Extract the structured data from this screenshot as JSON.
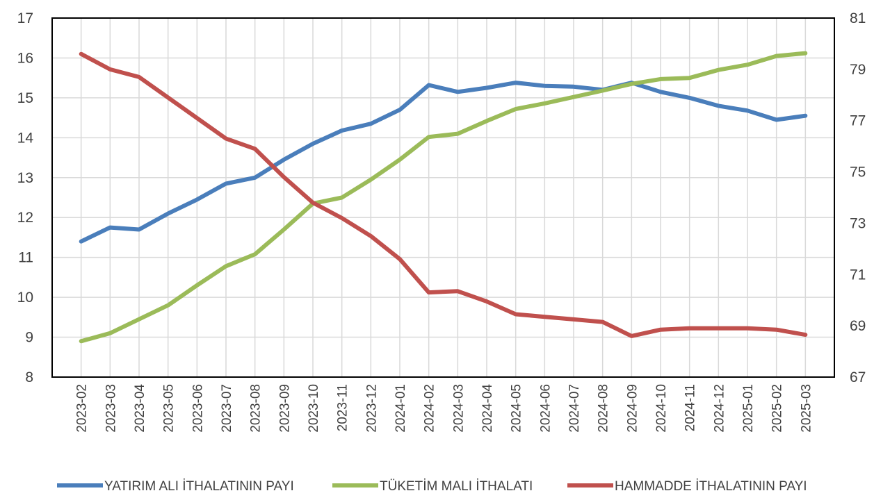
{
  "chart_data": {
    "type": "line",
    "x": [
      "2023-02",
      "2023-03",
      "2023-04",
      "2023-05",
      "2023-06",
      "2023-07",
      "2023-08",
      "2023-09",
      "2023-10",
      "2023-11",
      "2023-12",
      "2024-01",
      "2024-02",
      "2024-03",
      "2024-04",
      "2024-05",
      "2024-06",
      "2024-07",
      "2024-08",
      "2024-09",
      "2024-10",
      "2024-11",
      "2024-12",
      "2025-01",
      "2025-02",
      "2025-03"
    ],
    "y_left": {
      "min": 8,
      "max": 17,
      "ticks": [
        8,
        9,
        10,
        11,
        12,
        13,
        14,
        15,
        16,
        17
      ]
    },
    "y_right": {
      "min": 67,
      "max": 81,
      "ticks": [
        67,
        69,
        71,
        73,
        75,
        77,
        79,
        81
      ]
    },
    "grid": true,
    "legend_position": "bottom",
    "series": [
      {
        "name": "YATIRIM ALI İTHALATININ PAYI",
        "axis": "left",
        "color": "#4a7ebb",
        "values": [
          11.4,
          11.75,
          11.7,
          12.1,
          12.45,
          12.85,
          13.0,
          13.45,
          13.85,
          14.18,
          14.35,
          14.7,
          15.32,
          15.15,
          15.25,
          15.38,
          15.3,
          15.28,
          15.2,
          15.38,
          15.15,
          15.0,
          14.8,
          14.68,
          14.45,
          14.55
        ]
      },
      {
        "name": "TÜKETİM MALI İTHALATI",
        "axis": "left",
        "color": "#9bbb59",
        "values": [
          8.9,
          9.1,
          9.45,
          9.8,
          10.3,
          10.78,
          11.08,
          11.7,
          12.35,
          12.5,
          12.95,
          13.45,
          14.02,
          14.1,
          14.42,
          14.72,
          14.86,
          15.02,
          15.18,
          15.35,
          15.47,
          15.5,
          15.7,
          15.83,
          16.05,
          16.12
        ]
      },
      {
        "name": "HAMMADDE İTHALATININ PAYI",
        "axis": "right",
        "color": "#c0504d",
        "values": [
          79.6,
          79.0,
          78.7,
          77.9,
          77.1,
          76.3,
          75.9,
          74.8,
          73.8,
          73.2,
          72.5,
          71.6,
          70.3,
          70.35,
          69.95,
          69.45,
          69.35,
          69.25,
          69.15,
          68.6,
          68.85,
          68.9,
          68.9,
          68.9,
          68.85,
          68.65
        ]
      }
    ]
  }
}
